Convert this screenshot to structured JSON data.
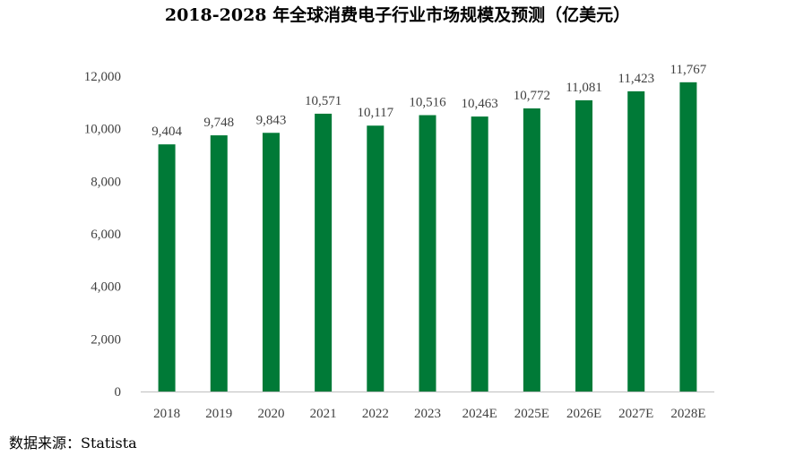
{
  "chart_data": {
    "type": "bar",
    "title": "2018-2028 年全球消费电子行业市场规模及预测（亿美元）",
    "categories": [
      "2018",
      "2019",
      "2020",
      "2021",
      "2022",
      "2023",
      "2024E",
      "2025E",
      "2026E",
      "2027E",
      "2028E"
    ],
    "values": [
      9404,
      9748,
      9843,
      10571,
      10117,
      10516,
      10463,
      10772,
      11081,
      11423,
      11767
    ],
    "value_labels": [
      "9,404",
      "9,748",
      "9,843",
      "10,571",
      "10,117",
      "10,516",
      "10,463",
      "10,772",
      "11,081",
      "11,423",
      "11,767"
    ],
    "y_ticks": [
      0,
      2000,
      4000,
      6000,
      8000,
      10000,
      12000
    ],
    "y_tick_labels": [
      "0",
      "2,000",
      "4,000",
      "6,000",
      "8,000",
      "10,000",
      "12,000"
    ],
    "ylim": [
      0,
      12000
    ],
    "xlabel": "",
    "ylabel": "",
    "grid": false,
    "legend": "none",
    "bar_color": "#007A37",
    "axis_color": "#BFBFBF"
  },
  "source": {
    "text": "数据来源：Statista"
  }
}
